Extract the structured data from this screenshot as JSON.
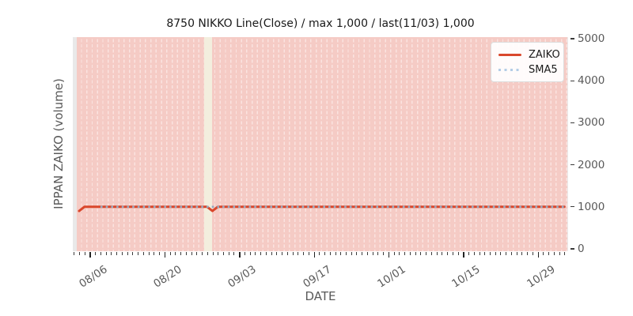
{
  "title": "8750 NIKKO Line(Close) / max 1,000 / last(11/03) 1,000",
  "axes": {
    "xlabel": "DATE",
    "ylabel": "IPPAN ZAIKO (volume)"
  },
  "legend": {
    "position": "upper right",
    "items": [
      {
        "label": "ZAIKO",
        "style": "solid",
        "color": "#d9472c"
      },
      {
        "label": "SMA5",
        "style": "dotted",
        "color": "#b3cde6"
      }
    ]
  },
  "chart_data": {
    "type": "line",
    "title": "8750 NIKKO Line(Close) / max 1,000 / last(11/03) 1,000",
    "xlabel": "DATE",
    "ylabel": "IPPAN ZAIKO (volume)",
    "x_start": "08/04",
    "x_end": "11/03",
    "ylim": [
      0,
      5000
    ],
    "yticks": [
      {
        "value": 0,
        "label": "0"
      },
      {
        "value": 1000,
        "label": "1000"
      },
      {
        "value": 2000,
        "label": "2000"
      },
      {
        "value": 3000,
        "label": "3000"
      },
      {
        "value": 4000,
        "label": "4000"
      },
      {
        "value": 5000,
        "label": "5000"
      }
    ],
    "xticks": [
      "08/06",
      "08/20",
      "09/03",
      "09/17",
      "10/01",
      "10/15",
      "10/29"
    ],
    "series": [
      {
        "name": "ZAIKO",
        "style": "solid",
        "color": "#d9472c",
        "width": 3,
        "keypoints": [
          [
            "08/04",
            900
          ],
          [
            "08/05",
            1000
          ],
          [
            "08/28",
            1000
          ],
          [
            "08/29",
            900
          ],
          [
            "08/30",
            1000
          ],
          [
            "11/03",
            1000
          ]
        ]
      },
      {
        "name": "SMA5",
        "style": "dotted",
        "color": "#b3cde6",
        "plot_color": "#94abc2",
        "width": 2.6,
        "keypoints": [
          [
            "08/08",
            1000
          ],
          [
            "11/03",
            1000
          ]
        ]
      }
    ],
    "stats": {
      "max": "1,000",
      "last_date": "11/03",
      "last_value": "1,000"
    },
    "background": {
      "plot_bg": "#e9e9e9",
      "daily_bar_color": "#f5cbc5",
      "daily_bar_gap_color": "#fae3e0",
      "gap_band": {
        "from": "08/27",
        "to": "08/28",
        "color": "#f3eede"
      }
    },
    "grid": "vertical dashed daily stripes"
  }
}
